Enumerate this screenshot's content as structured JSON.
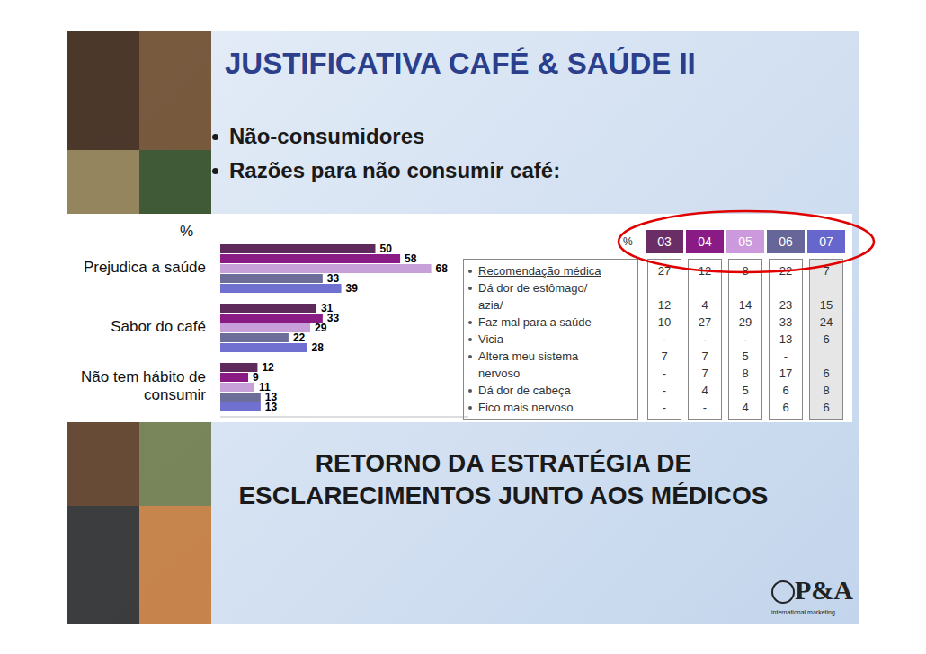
{
  "title": "JUSTIFICATIVA CAFÉ & SAÚDE II",
  "bullets": [
    "Não-consumidores",
    "Razões para não consumir café:"
  ],
  "chart_data": {
    "type": "bar",
    "orientation": "horizontal",
    "xlabel": "%",
    "categories": [
      "Prejudica a saúde",
      "Sabor do café",
      "Não tem hábito de consumir"
    ],
    "series": [
      {
        "name": "03",
        "color": "#5e2a5c",
        "values": [
          50,
          31,
          12
        ]
      },
      {
        "name": "04",
        "color": "#8a1a84",
        "values": [
          58,
          33,
          9
        ]
      },
      {
        "name": "05",
        "color": "#c79fd9",
        "values": [
          68,
          29,
          11
        ]
      },
      {
        "name": "06",
        "color": "#6d6d9a",
        "values": [
          33,
          22,
          13
        ]
      },
      {
        "name": "07",
        "color": "#7070d0",
        "values": [
          39,
          28,
          13
        ]
      }
    ],
    "xlim": [
      0,
      80
    ],
    "data_labels": true,
    "tick_labels": "y"
  },
  "table": {
    "corner": "%",
    "columns": [
      "03",
      "04",
      "05",
      "06",
      "07"
    ],
    "column_colors": [
      "#6b2d66",
      "#8a1a84",
      "#cc99dd",
      "#666699",
      "#6666cc"
    ],
    "rows": [
      {
        "label": "Recomendação médica",
        "bullet": true,
        "values": [
          27,
          12,
          8,
          22,
          7
        ]
      },
      {
        "label": "Dá dor de estômago/",
        "bullet": true,
        "values": [
          null,
          null,
          null,
          null,
          null
        ]
      },
      {
        "label": "azia/",
        "bullet": false,
        "values": [
          12,
          4,
          14,
          23,
          15
        ]
      },
      {
        "label": "Faz mal para a saúde",
        "bullet": true,
        "values": [
          10,
          27,
          29,
          33,
          24
        ]
      },
      {
        "label": "Vicia",
        "bullet": true,
        "values": [
          "-",
          "-",
          "-",
          13,
          6
        ]
      },
      {
        "label": "Altera meu sistema",
        "bullet": true,
        "values": [
          7,
          7,
          5,
          "-",
          null
        ]
      },
      {
        "label": "nervoso",
        "bullet": false,
        "values": [
          "-",
          7,
          8,
          17,
          6
        ]
      },
      {
        "label": "Dá dor de cabeça",
        "bullet": true,
        "values": [
          "-",
          4,
          5,
          6,
          8
        ]
      },
      {
        "label": "Fico mais nervoso",
        "bullet": true,
        "values": [
          "-",
          "-",
          4,
          6,
          6
        ]
      }
    ]
  },
  "conclusion": [
    "RETORNO DA ESTRATÉGIA DE",
    "ESCLARECIMENTOS JUNTO AOS MÉDICOS"
  ],
  "logo": {
    "text": "P&A",
    "subtitle": "international marketing"
  }
}
